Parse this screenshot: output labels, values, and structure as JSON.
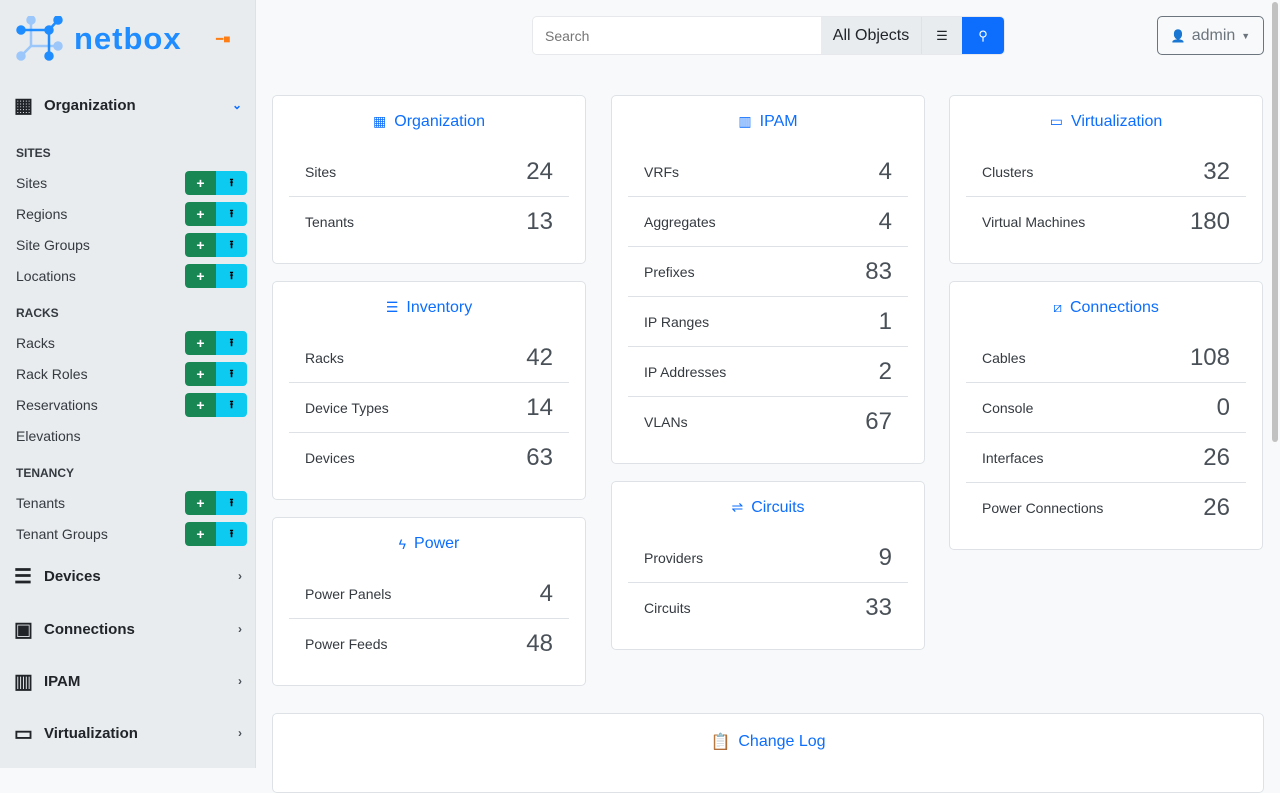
{
  "brand": {
    "name": "netbox",
    "accent": "#0d6efd"
  },
  "sidebar": {
    "groups": [
      {
        "label": "Organization",
        "icon": "building-icon",
        "expanded": true
      },
      {
        "label": "Devices",
        "icon": "server-icon"
      },
      {
        "label": "Connections",
        "icon": "ethernet-icon"
      },
      {
        "label": "IPAM",
        "icon": "ipam-icon"
      },
      {
        "label": "Virtualization",
        "icon": "monitor-icon"
      }
    ],
    "sections": [
      {
        "title": "SITES",
        "items": [
          {
            "label": "Sites",
            "buttons": true
          },
          {
            "label": "Regions",
            "buttons": true
          },
          {
            "label": "Site Groups",
            "buttons": true
          },
          {
            "label": "Locations",
            "buttons": true
          }
        ]
      },
      {
        "title": "RACKS",
        "items": [
          {
            "label": "Racks",
            "buttons": true
          },
          {
            "label": "Rack Roles",
            "buttons": true
          },
          {
            "label": "Reservations",
            "buttons": true
          },
          {
            "label": "Elevations",
            "buttons": false
          }
        ]
      },
      {
        "title": "TENANCY",
        "items": [
          {
            "label": "Tenants",
            "buttons": true
          },
          {
            "label": "Tenant Groups",
            "buttons": true
          }
        ]
      }
    ],
    "add_symbol": "+",
    "import_symbol": "⭱"
  },
  "header": {
    "search_placeholder": "Search",
    "search_scope": "All Objects",
    "user": "admin"
  },
  "cards": {
    "organization": {
      "title": "Organization",
      "rows": [
        [
          "Sites",
          "24"
        ],
        [
          "Tenants",
          "13"
        ]
      ]
    },
    "inventory": {
      "title": "Inventory",
      "rows": [
        [
          "Racks",
          "42"
        ],
        [
          "Device Types",
          "14"
        ],
        [
          "Devices",
          "63"
        ]
      ]
    },
    "power": {
      "title": "Power",
      "rows": [
        [
          "Power Panels",
          "4"
        ],
        [
          "Power Feeds",
          "48"
        ]
      ]
    },
    "ipam": {
      "title": "IPAM",
      "rows": [
        [
          "VRFs",
          "4"
        ],
        [
          "Aggregates",
          "4"
        ],
        [
          "Prefixes",
          "83"
        ],
        [
          "IP Ranges",
          "1"
        ],
        [
          "IP Addresses",
          "2"
        ],
        [
          "VLANs",
          "67"
        ]
      ]
    },
    "circuits": {
      "title": "Circuits",
      "rows": [
        [
          "Providers",
          "9"
        ],
        [
          "Circuits",
          "33"
        ]
      ]
    },
    "virtualization": {
      "title": "Virtualization",
      "rows": [
        [
          "Clusters",
          "32"
        ],
        [
          "Virtual Machines",
          "180"
        ]
      ]
    },
    "connections": {
      "title": "Connections",
      "rows": [
        [
          "Cables",
          "108"
        ],
        [
          "Console",
          "0"
        ],
        [
          "Interfaces",
          "26"
        ],
        [
          "Power Connections",
          "26"
        ]
      ]
    }
  },
  "changelog": {
    "title": "Change Log"
  }
}
